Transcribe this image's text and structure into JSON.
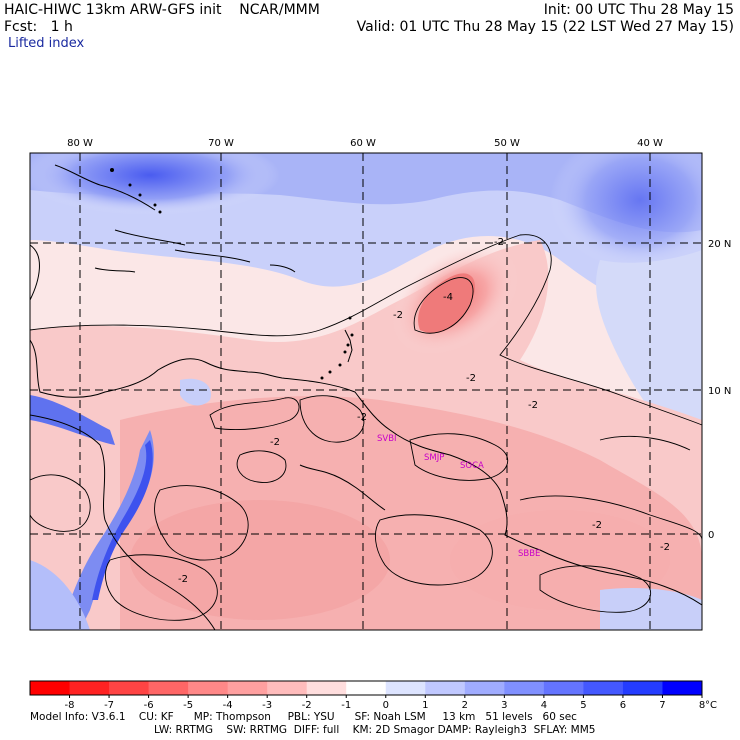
{
  "header": {
    "left_line1": "HAIC-HIWC 13km ARW-GFS init    NCAR/MMM",
    "left_line2": "Fcst:   1 h",
    "field": "Lifted index",
    "right_line1": "Init: 00 UTC Thu 28 May 15",
    "right_line2": "Valid: 01 UTC Thu 28 May 15 (22 LST Wed 27 May 15)"
  },
  "axes": {
    "lon_labels": [
      "80 W",
      "70 W",
      "60 W",
      "50 W",
      "40 W"
    ],
    "lat_labels": [
      "20 N",
      "10 N",
      "0"
    ]
  },
  "contour_labels": [
    "-4",
    "-2",
    "-2",
    "-2",
    "-2",
    "-2",
    "-2",
    "-2",
    "-2",
    "-2"
  ],
  "stations": [
    "SVBI",
    "SMJP",
    "SOCA",
    "SBBE"
  ],
  "colorbar": {
    "ticks": [
      "-8",
      "-7",
      "-6",
      "-5",
      "-4",
      "-3",
      "-2",
      "-1",
      "0",
      "1",
      "2",
      "3",
      "4",
      "5",
      "6",
      "7",
      "8"
    ],
    "unit": "°C",
    "colors": [
      "#ff0000",
      "#ff2222",
      "#ff4444",
      "#ff6666",
      "#ff8888",
      "#ffa0a0",
      "#ffbcbc",
      "#ffdede",
      "#ffffff",
      "#dde4ff",
      "#c0c8ff",
      "#a0acff",
      "#8090ff",
      "#6474ff",
      "#4458ff",
      "#243cff",
      "#0000ff"
    ]
  },
  "footer": {
    "line1": "Model Info: V3.6.1    CU: KF      MP: Thompson     PBL: YSU      SF: Noah LSM     13 km   51 levels   60 sec",
    "line2": "LW: RRTMG    SW: RRTMG  DIFF: full    KM: 2D Smagor DAMP: Rayleigh3  SFLAY: MM5"
  }
}
